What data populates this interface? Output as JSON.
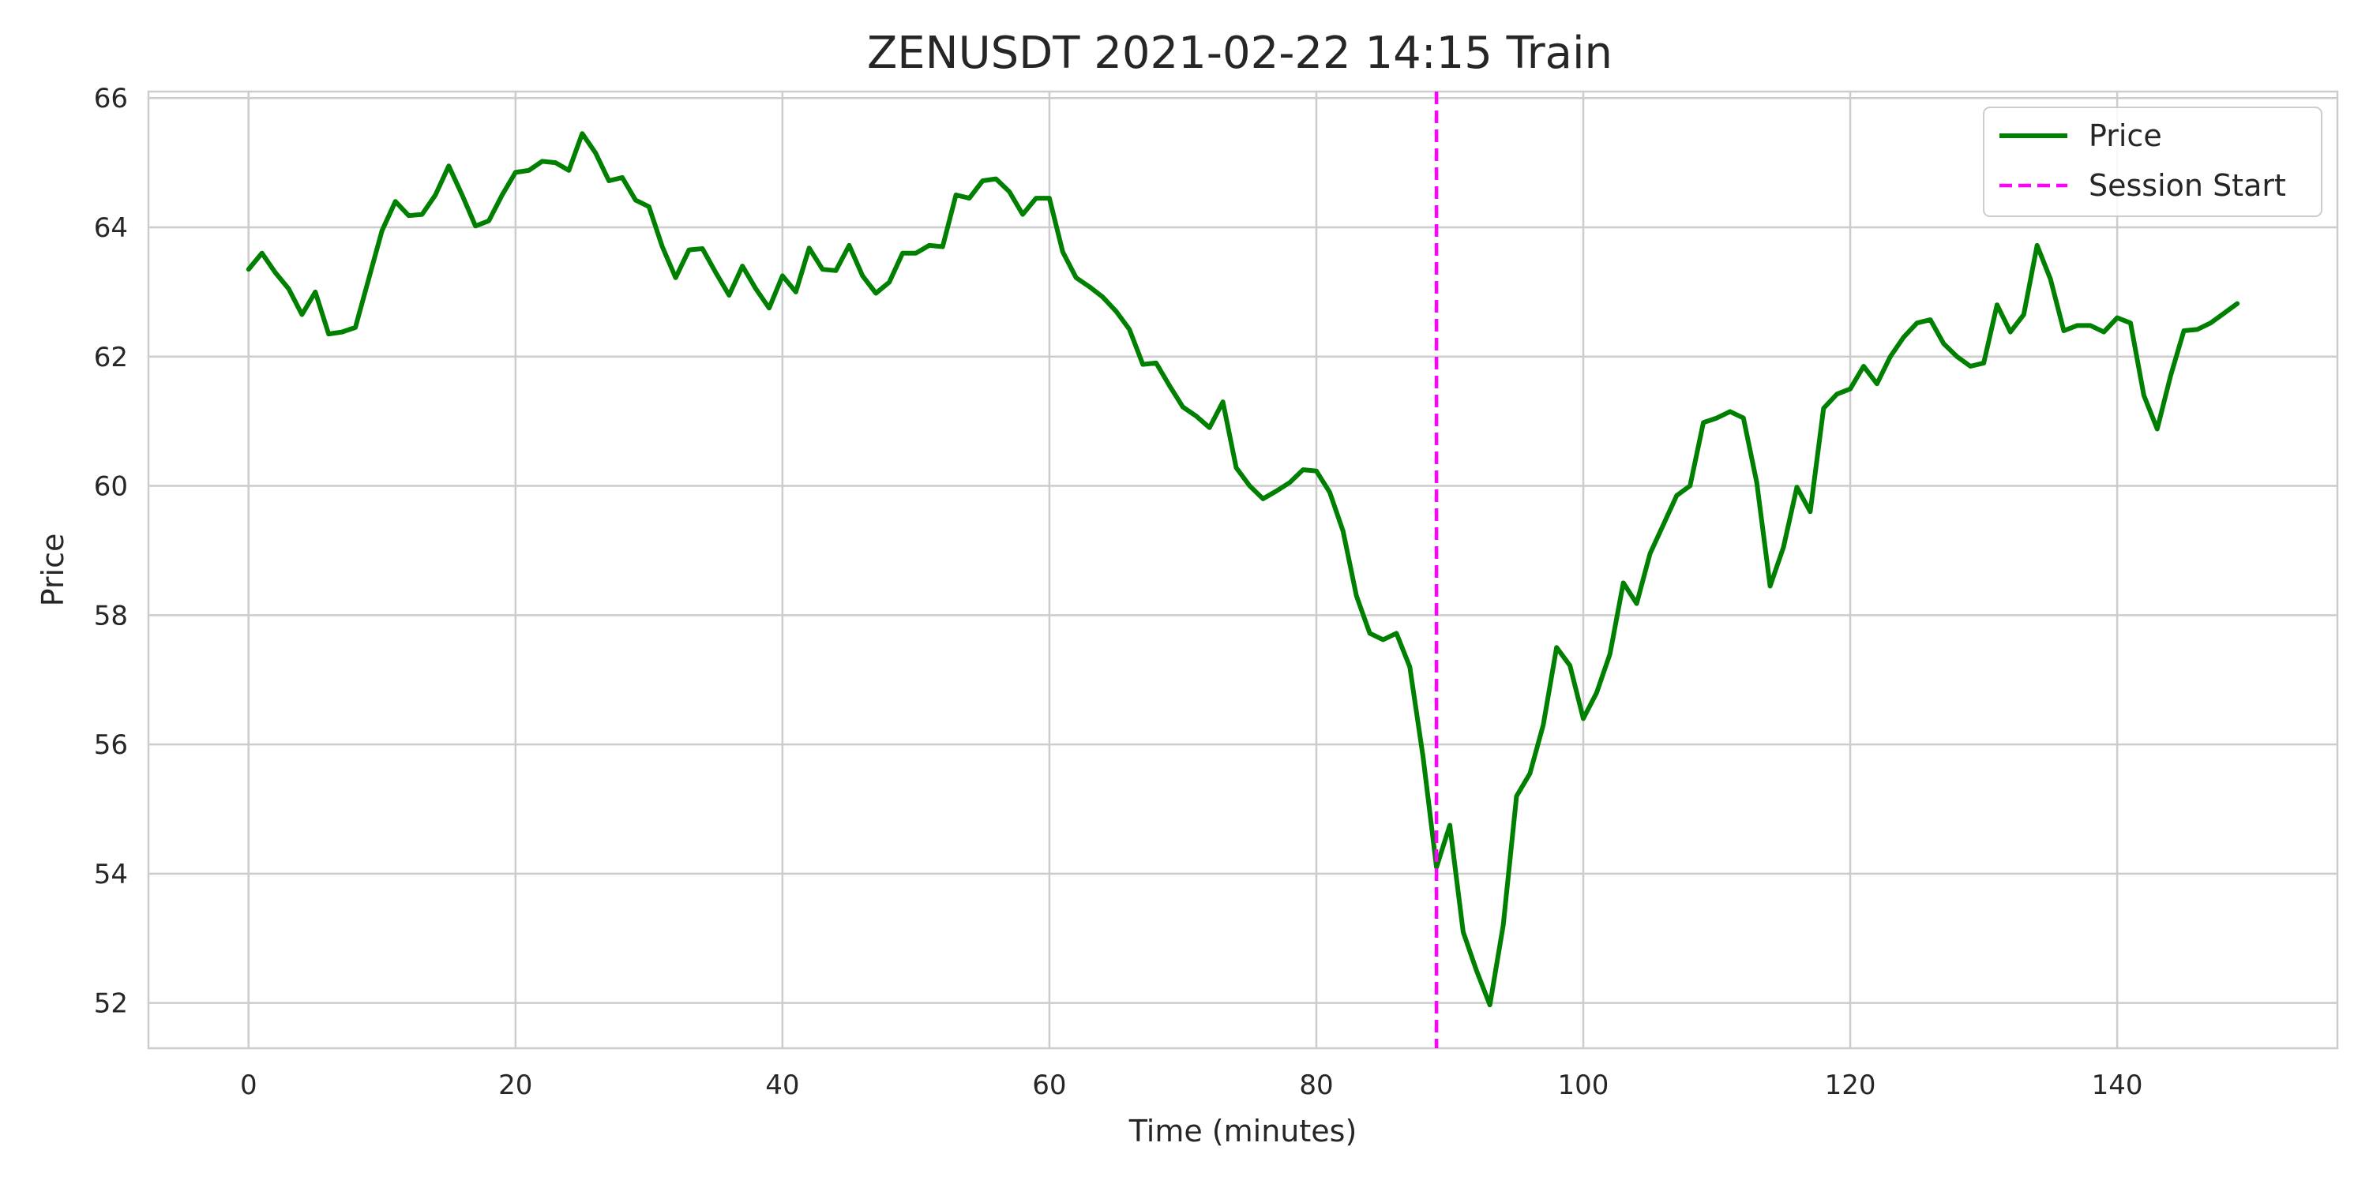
{
  "chart_data": {
    "type": "line",
    "title": "ZENUSDT 2021-02-22 14:15  Train",
    "xlabel": "Time (minutes)",
    "ylabel": "Price",
    "xlim": [
      -7.5,
      156.5
    ],
    "ylim": [
      51.3,
      66.1
    ],
    "xticks": [
      0,
      20,
      40,
      60,
      80,
      100,
      120,
      140
    ],
    "yticks": [
      52,
      54,
      56,
      58,
      60,
      62,
      64,
      66
    ],
    "grid": true,
    "legend_position": "top-right",
    "series": [
      {
        "name": "Price",
        "color": "#008000",
        "style": "solid",
        "x": [
          0,
          1,
          2,
          3,
          4,
          5,
          6,
          7,
          8,
          9,
          10,
          11,
          12,
          13,
          14,
          15,
          16,
          17,
          18,
          19,
          20,
          21,
          22,
          23,
          24,
          25,
          26,
          27,
          28,
          29,
          30,
          31,
          32,
          33,
          34,
          35,
          36,
          37,
          38,
          39,
          40,
          41,
          42,
          43,
          44,
          45,
          46,
          47,
          48,
          49,
          50,
          51,
          52,
          53,
          54,
          55,
          56,
          57,
          58,
          59,
          60,
          61,
          62,
          63,
          64,
          65,
          66,
          67,
          68,
          69,
          70,
          71,
          72,
          73,
          74,
          75,
          76,
          77,
          78,
          79,
          80,
          81,
          82,
          83,
          84,
          85,
          86,
          87,
          88,
          89,
          90,
          91,
          92,
          93,
          94,
          95,
          96,
          97,
          98,
          99,
          100,
          101,
          102,
          103,
          104,
          105,
          106,
          107,
          108,
          109,
          110,
          111,
          112,
          113,
          114,
          115,
          116,
          117,
          118,
          119,
          120,
          121,
          122,
          123,
          124,
          125,
          126,
          127,
          128,
          129,
          130,
          131,
          132,
          133,
          134,
          135,
          136,
          137,
          138,
          139,
          140,
          141,
          142,
          143,
          144,
          145,
          146,
          147,
          148,
          149
        ],
        "values": [
          63.35,
          63.6,
          63.3,
          63.05,
          62.65,
          63.0,
          62.35,
          62.38,
          62.45,
          63.2,
          63.95,
          64.4,
          64.18,
          64.2,
          64.5,
          64.95,
          64.5,
          64.02,
          64.1,
          64.5,
          64.85,
          64.88,
          65.02,
          65.0,
          64.88,
          65.45,
          65.15,
          64.72,
          64.77,
          64.42,
          64.32,
          63.7,
          63.22,
          63.65,
          63.67,
          63.3,
          62.95,
          63.4,
          63.05,
          62.75,
          63.25,
          63.0,
          63.68,
          63.35,
          63.33,
          63.72,
          63.25,
          62.98,
          63.15,
          63.6,
          63.6,
          63.72,
          63.7,
          64.5,
          64.45,
          64.72,
          64.75,
          64.55,
          64.2,
          64.45,
          64.45,
          63.62,
          63.22,
          63.08,
          62.92,
          62.7,
          62.42,
          61.88,
          61.9,
          61.55,
          61.22,
          61.08,
          60.9,
          61.3,
          60.28,
          60.0,
          59.8,
          59.92,
          60.05,
          60.25,
          60.23,
          59.9,
          59.3,
          58.3,
          57.72,
          57.62,
          57.72,
          57.2,
          55.8,
          54.1,
          54.75,
          53.1,
          52.5,
          51.97,
          53.2,
          55.2,
          55.55,
          56.3,
          57.5,
          57.22,
          56.4,
          56.8,
          57.4,
          58.5,
          58.18,
          58.95,
          59.4,
          59.85,
          60.0,
          60.98,
          61.05,
          61.15,
          61.05,
          60.05,
          58.45,
          59.05,
          59.98,
          59.6,
          61.2,
          61.42,
          61.5,
          61.85,
          61.58,
          62.0,
          62.3,
          62.52,
          62.57,
          62.2,
          62.0,
          61.85,
          61.9,
          62.8,
          62.38,
          62.65,
          63.72,
          63.2,
          62.4,
          62.48,
          62.48,
          62.38,
          62.6,
          62.52,
          61.4,
          60.88,
          61.7,
          62.4,
          62.42,
          62.52,
          62.67,
          62.82
        ]
      },
      {
        "name": "Session Start",
        "color": "#ff00ff",
        "style": "dashed",
        "type": "vline",
        "x": 89
      }
    ]
  }
}
